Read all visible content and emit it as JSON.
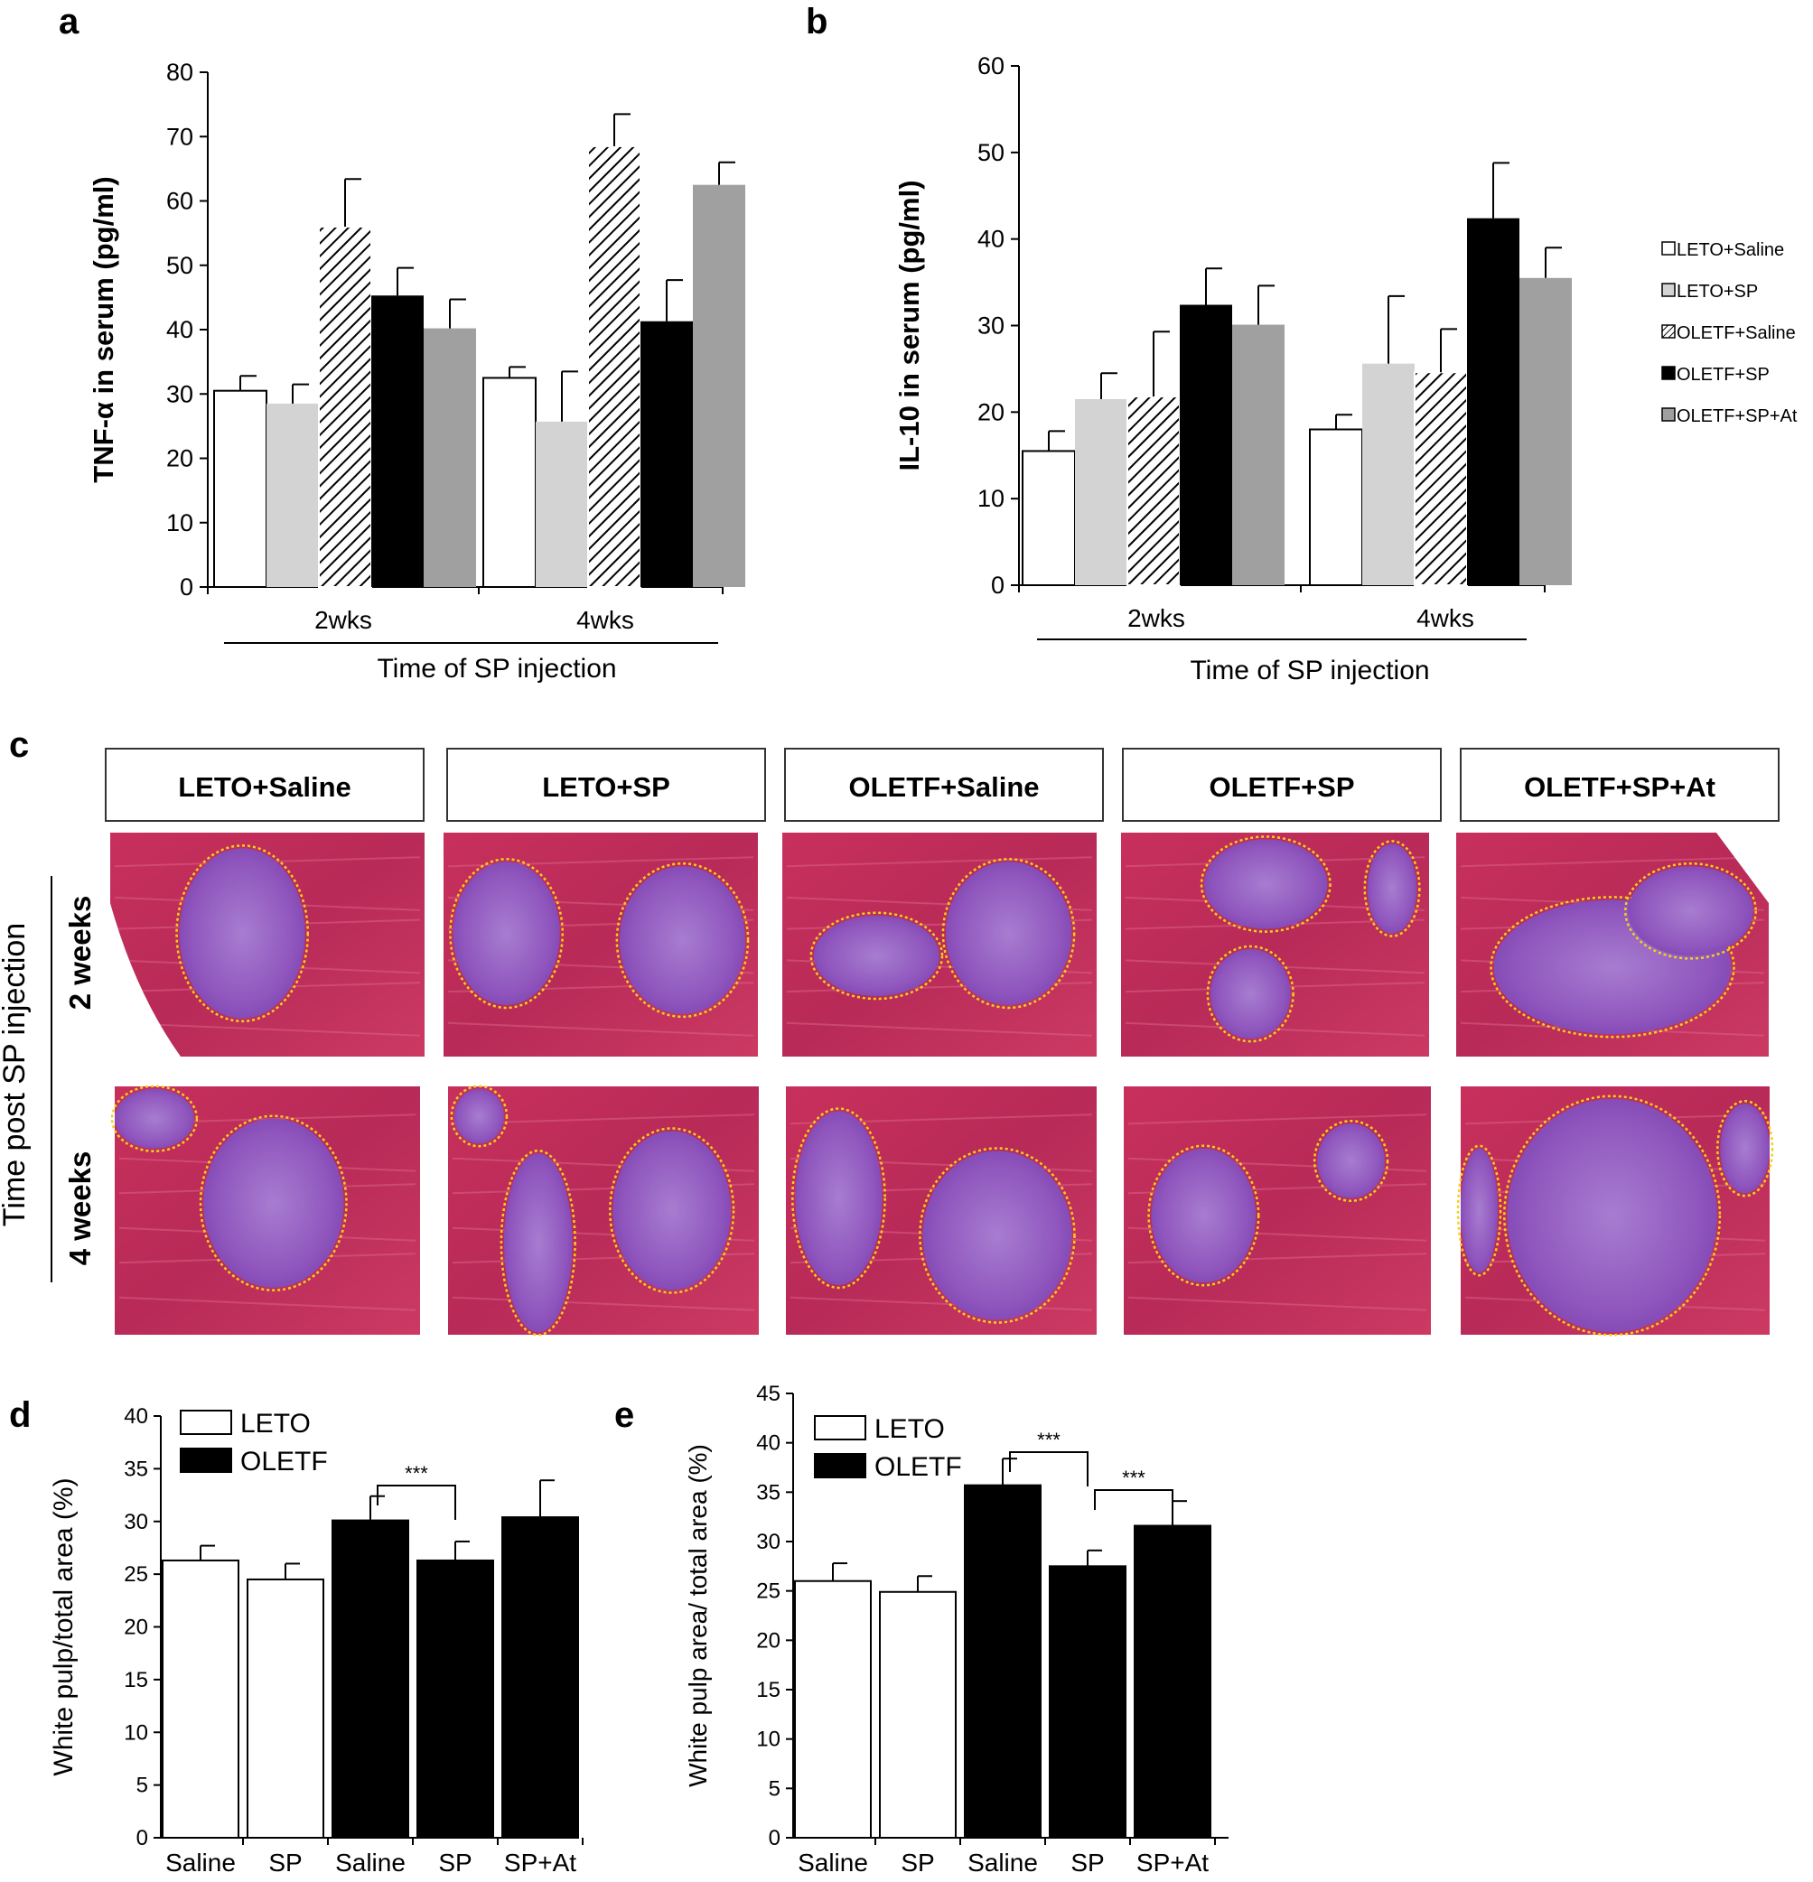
{
  "colors": {
    "white_bar": "#ffffff",
    "light_gray_bar": "#d3d3d3",
    "black_bar": "#000000",
    "gray_bar": "#a0a0a0",
    "tissue_red": "#c22a57",
    "tissue_purple": "#8a4bb5",
    "outline_yellow": "#f2d21b"
  },
  "legend_ab": [
    {
      "label": "LETO+Saline",
      "fill": "white"
    },
    {
      "label": "LETO+SP",
      "fill": "lightgray"
    },
    {
      "label": "OLETF+Saline",
      "fill": "hatch"
    },
    {
      "label": "OLETF+SP",
      "fill": "black"
    },
    {
      "label": "OLETF+SP+At",
      "fill": "gray"
    }
  ],
  "panel_c": {
    "letter": "c",
    "columns": [
      "LETO+Saline",
      "LETO+SP",
      "OLETF+Saline",
      "OLETF+SP",
      "OLETF+SP+At"
    ],
    "row_labels": [
      "2 weeks",
      "4 weeks"
    ],
    "side_label": "Time post SP injection"
  },
  "chart_data": [
    {
      "panel": "a",
      "type": "bar",
      "ylabel": "TNF-α in serum (pg/ml)",
      "xlabel": "Time of SP injection",
      "categories": [
        "2wks",
        "4wks"
      ],
      "ylim": [
        0,
        80
      ],
      "yticks": [
        0,
        10,
        20,
        30,
        40,
        50,
        60,
        70,
        80
      ],
      "series": [
        {
          "name": "LETO+Saline",
          "fill": "white",
          "values": [
            30.5,
            32.5
          ],
          "errors": [
            2.3,
            1.7
          ]
        },
        {
          "name": "LETO+SP",
          "fill": "lightgray",
          "values": [
            28.5,
            25.7
          ],
          "errors": [
            3.0,
            7.8
          ]
        },
        {
          "name": "OLETF+Saline",
          "fill": "hatch",
          "values": [
            56,
            68.5
          ],
          "errors": [
            7.4,
            5.0
          ]
        },
        {
          "name": "OLETF+SP",
          "fill": "black",
          "values": [
            45.3,
            41.3
          ],
          "errors": [
            4.3,
            6.4
          ]
        },
        {
          "name": "OLETF+SP+At",
          "fill": "gray",
          "values": [
            40.2,
            62.5
          ],
          "errors": [
            4.5,
            3.5
          ]
        }
      ]
    },
    {
      "panel": "b",
      "type": "bar",
      "ylabel": "IL-10 in serum (pg/ml)",
      "xlabel": "Time of SP injection",
      "categories": [
        "2wks",
        "4wks"
      ],
      "ylim": [
        0,
        60
      ],
      "yticks": [
        0,
        10,
        20,
        30,
        40,
        50,
        60
      ],
      "series": [
        {
          "name": "LETO+Saline",
          "fill": "white",
          "values": [
            15.5,
            18
          ],
          "errors": [
            2.3,
            1.7
          ]
        },
        {
          "name": "LETO+SP",
          "fill": "lightgray",
          "values": [
            21.5,
            25.6
          ],
          "errors": [
            3.0,
            7.8
          ]
        },
        {
          "name": "OLETF+Saline",
          "fill": "hatch",
          "values": [
            21.8,
            24.6
          ],
          "errors": [
            7.5,
            5.0
          ]
        },
        {
          "name": "OLETF+SP",
          "fill": "black",
          "values": [
            32.4,
            42.4
          ],
          "errors": [
            4.2,
            6.4
          ]
        },
        {
          "name": "OLETF+SP+At",
          "fill": "gray",
          "values": [
            30.1,
            35.5
          ],
          "errors": [
            4.5,
            3.5
          ]
        }
      ]
    },
    {
      "panel": "d",
      "type": "bar",
      "ylabel": "White pulp/total area (%)",
      "categories": [
        "Saline",
        "SP",
        "Saline",
        "SP",
        "SP+At"
      ],
      "ylim": [
        0,
        40
      ],
      "yticks": [
        0,
        5,
        10,
        15,
        20,
        25,
        30,
        35,
        40
      ],
      "legend": [
        "LETO",
        "OLETF"
      ],
      "groups": [
        "LETO",
        "LETO",
        "OLETF",
        "OLETF",
        "OLETF"
      ],
      "values": [
        26.3,
        24.5,
        30.1,
        26.3,
        30.4
      ],
      "errors": [
        1.4,
        1.5,
        2.3,
        1.8,
        3.5
      ],
      "significance": [
        {
          "from": 2,
          "to": 3,
          "label": "***"
        }
      ]
    },
    {
      "panel": "e",
      "type": "bar",
      "ylabel": "White pulp area/ total area (%)",
      "categories": [
        "Saline",
        "SP",
        "Saline",
        "SP",
        "SP+At"
      ],
      "ylim": [
        0,
        45
      ],
      "yticks": [
        0,
        5,
        10,
        15,
        20,
        25,
        30,
        35,
        40,
        45
      ],
      "legend": [
        "LETO",
        "OLETF"
      ],
      "groups": [
        "LETO",
        "LETO",
        "OLETF",
        "OLETF",
        "OLETF"
      ],
      "values": [
        26,
        24.9,
        35.7,
        27.5,
        31.6
      ],
      "errors": [
        1.8,
        1.6,
        2.7,
        1.6,
        2.5
      ],
      "significance": [
        {
          "from": 2,
          "to": 3,
          "label": "***"
        },
        {
          "from": 3,
          "to": 4,
          "label": "***"
        }
      ]
    }
  ]
}
